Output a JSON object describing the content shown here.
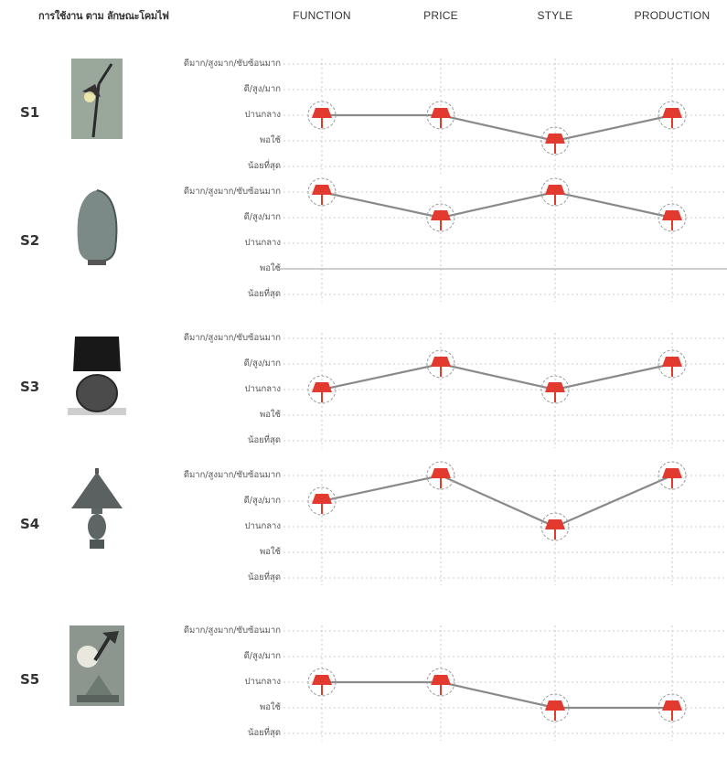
{
  "header": {
    "title": "การใช้งาน ตาม ลักษณะโคมไฟ"
  },
  "criteria": [
    "FUNCTION",
    "PRICE",
    "STYLE",
    "PRODUCTION"
  ],
  "levels": [
    "ดีมาก/สูงมาก/ซับซ้อนมาก",
    "ดี/สูง/มาก",
    "ปานกลาง",
    "พอใช้",
    "น้อยที่สุด"
  ],
  "chart_data": {
    "type": "line",
    "categories": [
      "FUNCTION",
      "PRICE",
      "STYLE",
      "PRODUCTION"
    ],
    "y_levels": [
      "น้อยที่สุด",
      "พอใช้",
      "ปานกลาง",
      "ดี/สูง/มาก",
      "ดีมาก/สูงมาก/ซับซ้อนมาก"
    ],
    "ylim": [
      1,
      5
    ],
    "grid": true,
    "series": [
      {
        "name": "S1",
        "values": [
          3,
          3,
          2,
          3
        ]
      },
      {
        "name": "S2",
        "values": [
          5,
          4,
          5,
          4
        ]
      },
      {
        "name": "S3",
        "values": [
          3,
          4,
          3,
          4
        ]
      },
      {
        "name": "S4",
        "values": [
          4,
          5,
          3,
          5
        ]
      },
      {
        "name": "S5",
        "values": [
          3,
          3,
          2,
          2
        ]
      }
    ]
  },
  "colors": {
    "line": "#8a8a8a",
    "lamp": "#e23a2e",
    "marker_ring": "#9a9a9a",
    "grid": "#bdbdbd"
  },
  "icons": [
    "desk-lamp-thumbnail",
    "vase-lamp-thumbnail",
    "black-shade-lamp-thumbnail",
    "red-table-lamp-thumbnail",
    "photo-lamp-thumbnail",
    "lamp-marker-icon"
  ]
}
